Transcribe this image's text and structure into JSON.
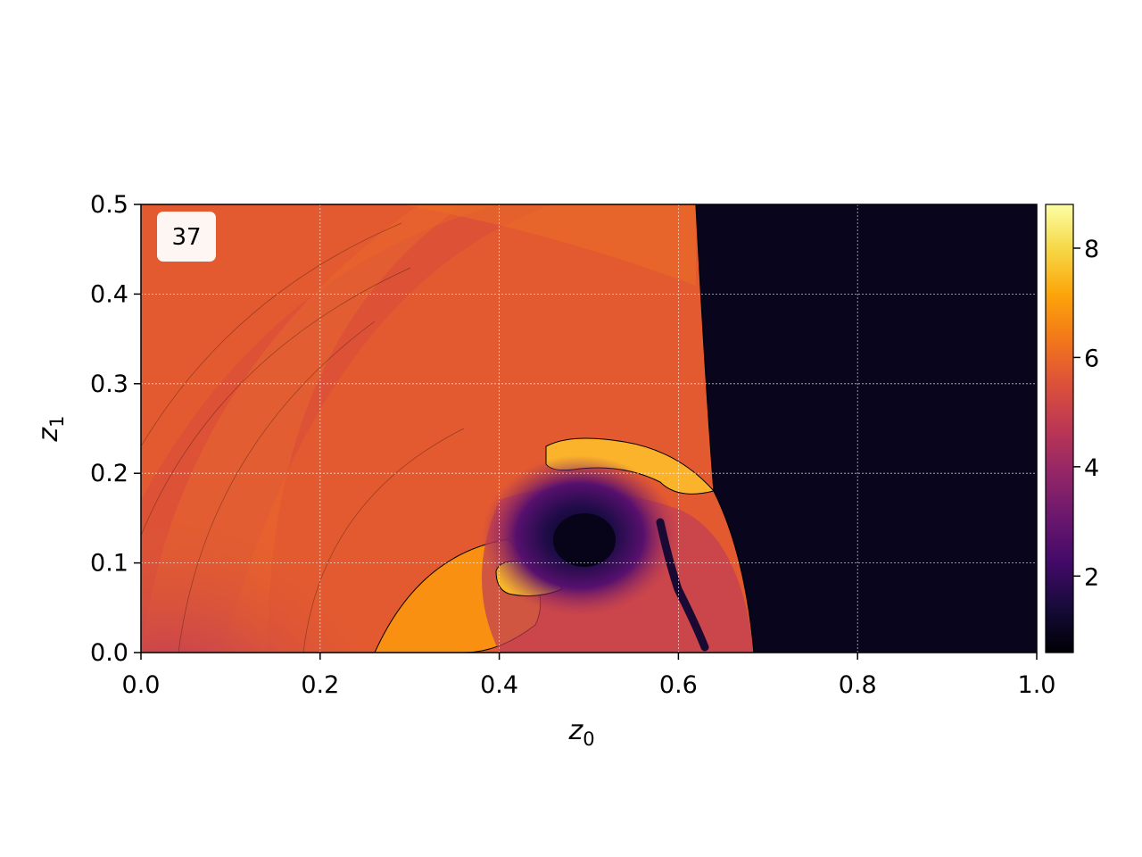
{
  "chart_data": {
    "type": "heatmap",
    "title": "",
    "panel_label": "37",
    "xlabel": {
      "base": "z",
      "sub": "0"
    },
    "ylabel": {
      "base": "z",
      "sub": "1"
    },
    "xlim": [
      0.0,
      1.0
    ],
    "ylim": [
      0.0,
      0.5
    ],
    "x_ticks": [
      0.0,
      0.2,
      0.4,
      0.6,
      0.8,
      1.0
    ],
    "x_tick_labels": [
      "0.0",
      "0.2",
      "0.4",
      "0.6",
      "0.8",
      "1.0"
    ],
    "y_ticks": [
      0.0,
      0.1,
      0.2,
      0.3,
      0.4,
      0.5
    ],
    "y_tick_labels": [
      "0.0",
      "0.1",
      "0.2",
      "0.3",
      "0.4",
      "0.5"
    ],
    "grid": true,
    "colormap": "inferno",
    "colorbar": {
      "range": [
        0.6,
        8.8
      ],
      "ticks": [
        2,
        4,
        6,
        8
      ],
      "tick_labels": [
        "2",
        "4",
        "6",
        "8"
      ]
    },
    "features": {
      "dark_region_x_start": 0.62,
      "dark_region_value": 0.7,
      "background_value": 6.0,
      "vortex_center": [
        0.49,
        0.12
      ],
      "vortex_value": 1.2,
      "bright_lobe_value": 7.5
    }
  }
}
